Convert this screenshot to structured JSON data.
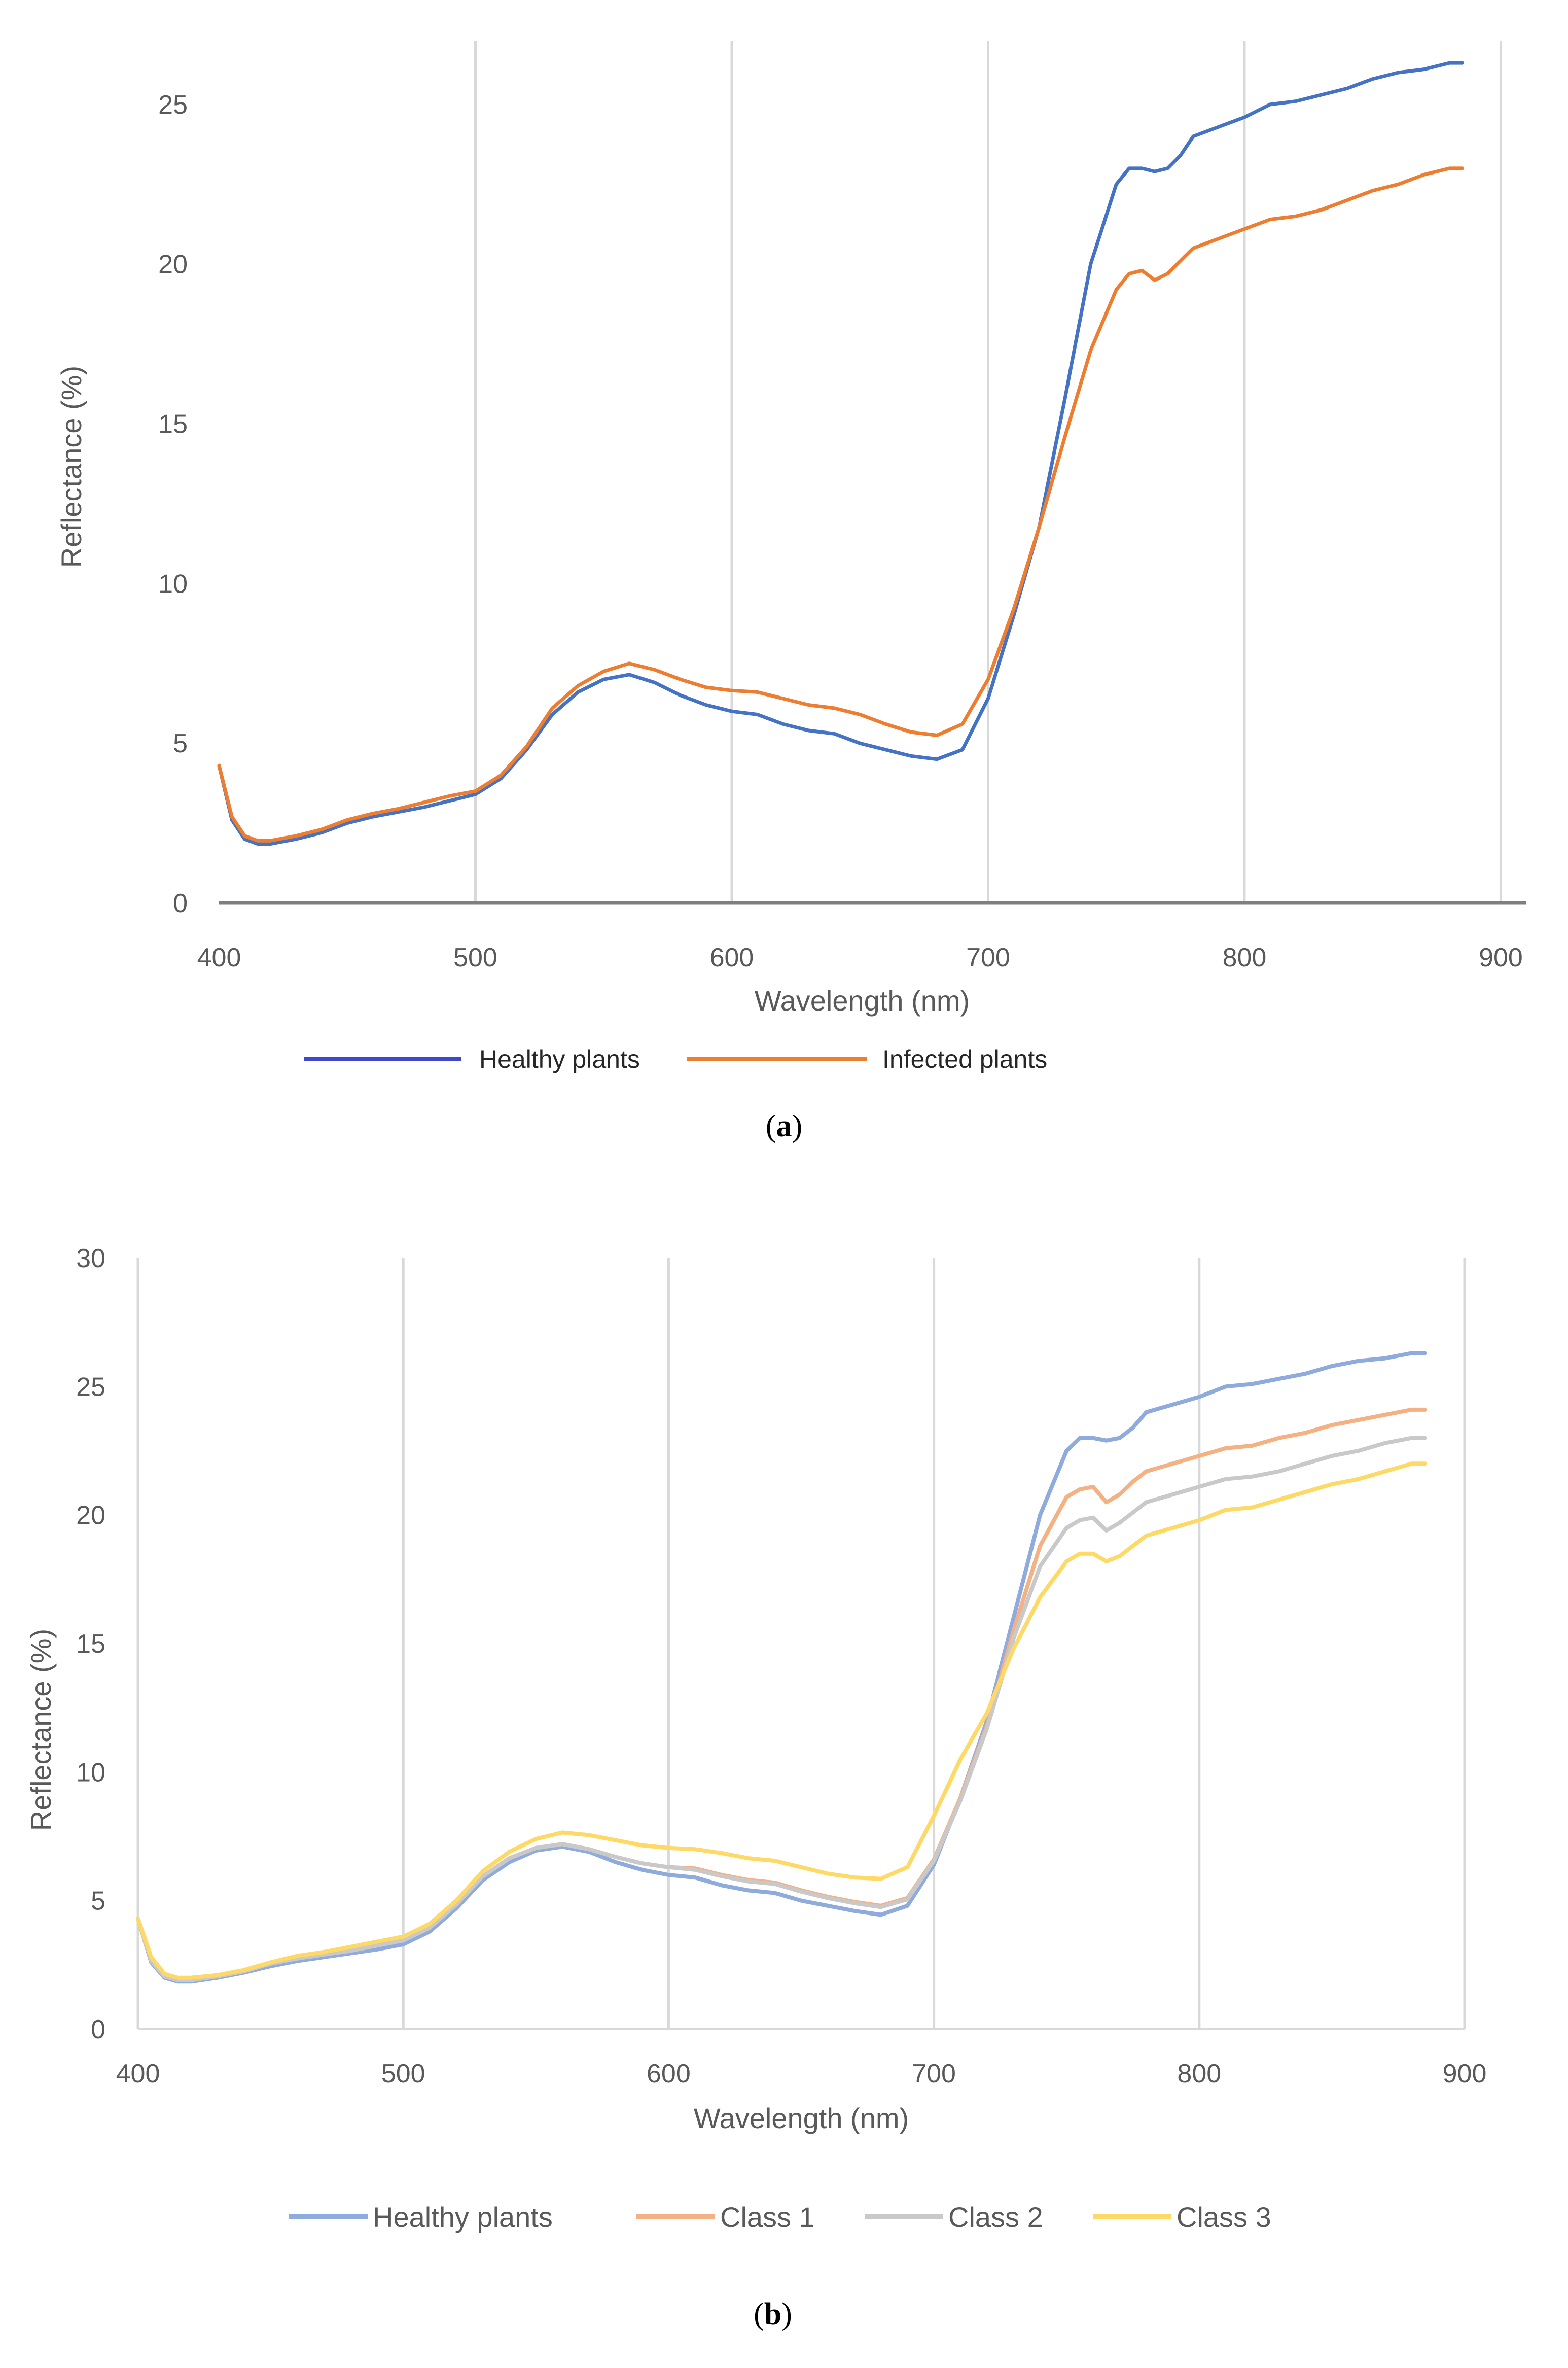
{
  "chart_data": [
    {
      "id": "a",
      "type": "line",
      "caption_open": "(",
      "caption_letter": "a",
      "caption_close": ")",
      "xlabel": "Wavelength (nm)",
      "ylabel": "Reflectance (%)",
      "xlim": [
        400,
        910
      ],
      "ylim": [
        0,
        27
      ],
      "xticks": [
        400,
        500,
        600,
        700,
        800,
        900
      ],
      "yticks": [
        0,
        5,
        10,
        15,
        20,
        25
      ],
      "grid": "vertical",
      "legend": "bottom",
      "x": [
        400,
        405,
        410,
        415,
        420,
        430,
        440,
        450,
        460,
        470,
        480,
        490,
        500,
        510,
        520,
        530,
        540,
        550,
        560,
        570,
        580,
        590,
        600,
        610,
        620,
        630,
        640,
        650,
        660,
        670,
        680,
        690,
        700,
        710,
        720,
        730,
        740,
        750,
        755,
        760,
        765,
        770,
        775,
        780,
        790,
        800,
        810,
        820,
        830,
        840,
        850,
        860,
        870,
        880,
        885
      ],
      "series": [
        {
          "name": "Healthy plants",
          "color": "#4472c4",
          "legend_color": "#3f48cc",
          "values": [
            4.3,
            2.6,
            2.0,
            1.85,
            1.85,
            2.0,
            2.2,
            2.5,
            2.7,
            2.85,
            3.0,
            3.2,
            3.4,
            3.9,
            4.8,
            5.9,
            6.6,
            7.0,
            7.15,
            6.9,
            6.5,
            6.2,
            6.0,
            5.9,
            5.6,
            5.4,
            5.3,
            5.0,
            4.8,
            4.6,
            4.5,
            4.8,
            6.4,
            9.0,
            11.8,
            15.8,
            20.0,
            22.5,
            23.0,
            23.0,
            22.9,
            23.0,
            23.4,
            24.0,
            24.3,
            24.6,
            25.0,
            25.1,
            25.3,
            25.5,
            25.8,
            26.0,
            26.1,
            26.3,
            26.3
          ]
        },
        {
          "name": "Infected plants",
          "color": "#ed7d31",
          "legend_color": "#ed7d31",
          "values": [
            4.3,
            2.7,
            2.1,
            1.95,
            1.95,
            2.1,
            2.3,
            2.6,
            2.8,
            2.95,
            3.15,
            3.35,
            3.5,
            4.0,
            4.9,
            6.1,
            6.8,
            7.25,
            7.5,
            7.3,
            7.0,
            6.75,
            6.65,
            6.6,
            6.4,
            6.2,
            6.1,
            5.9,
            5.6,
            5.35,
            5.25,
            5.6,
            7.0,
            9.2,
            11.8,
            14.6,
            17.3,
            19.2,
            19.7,
            19.8,
            19.5,
            19.7,
            20.1,
            20.5,
            20.8,
            21.1,
            21.4,
            21.5,
            21.7,
            22.0,
            22.3,
            22.5,
            22.8,
            23.0,
            23.0
          ]
        }
      ]
    },
    {
      "id": "b",
      "type": "line",
      "caption_open": "(",
      "caption_letter": "b",
      "caption_close": ")",
      "xlabel": "Wavelength (nm)",
      "ylabel": "Reflectance (%)",
      "xlim": [
        400,
        900
      ],
      "ylim": [
        0,
        30
      ],
      "xticks": [
        400,
        500,
        600,
        700,
        800,
        900
      ],
      "yticks": [
        0,
        5,
        10,
        15,
        20,
        25,
        30
      ],
      "grid": "vertical",
      "legend": "bottom",
      "x": [
        400,
        405,
        410,
        415,
        420,
        430,
        440,
        450,
        460,
        470,
        480,
        490,
        500,
        510,
        520,
        530,
        540,
        550,
        560,
        570,
        580,
        590,
        600,
        610,
        620,
        630,
        640,
        650,
        660,
        670,
        680,
        690,
        700,
        710,
        720,
        730,
        740,
        750,
        755,
        760,
        765,
        770,
        775,
        780,
        790,
        800,
        810,
        820,
        830,
        840,
        850,
        860,
        870,
        880,
        885
      ],
      "series": [
        {
          "name": "Healthy plants",
          "color": "#8faadc",
          "values": [
            4.3,
            2.6,
            2.0,
            1.85,
            1.85,
            2.0,
            2.2,
            2.45,
            2.65,
            2.8,
            2.95,
            3.1,
            3.3,
            3.8,
            4.7,
            5.8,
            6.5,
            6.95,
            7.1,
            6.9,
            6.5,
            6.2,
            6.0,
            5.9,
            5.6,
            5.4,
            5.3,
            5.0,
            4.8,
            4.6,
            4.45,
            4.8,
            6.4,
            9.0,
            12.0,
            16.0,
            20.0,
            22.5,
            23.0,
            23.0,
            22.9,
            23.0,
            23.4,
            24.0,
            24.3,
            24.6,
            25.0,
            25.1,
            25.3,
            25.5,
            25.8,
            26.0,
            26.1,
            26.3,
            26.3
          ]
        },
        {
          "name": "Class 1",
          "color": "#f4b183",
          "values": [
            4.3,
            2.7,
            2.1,
            1.95,
            1.95,
            2.05,
            2.25,
            2.55,
            2.75,
            2.9,
            3.05,
            3.25,
            3.45,
            3.95,
            4.85,
            5.95,
            6.65,
            7.05,
            7.2,
            7.0,
            6.7,
            6.45,
            6.3,
            6.25,
            6.0,
            5.8,
            5.7,
            5.4,
            5.15,
            4.95,
            4.8,
            5.1,
            6.6,
            9.0,
            11.8,
            15.5,
            18.8,
            20.7,
            21.0,
            21.1,
            20.5,
            20.8,
            21.3,
            21.7,
            22.0,
            22.3,
            22.6,
            22.7,
            23.0,
            23.2,
            23.5,
            23.7,
            23.9,
            24.1,
            24.1
          ]
        },
        {
          "name": "Class 2",
          "color": "#c9c9c9",
          "values": [
            4.3,
            2.65,
            2.05,
            1.9,
            1.9,
            2.05,
            2.25,
            2.55,
            2.75,
            2.9,
            3.05,
            3.25,
            3.45,
            3.95,
            4.85,
            5.95,
            6.65,
            7.05,
            7.2,
            7.0,
            6.7,
            6.45,
            6.3,
            6.2,
            5.95,
            5.75,
            5.65,
            5.35,
            5.1,
            4.9,
            4.75,
            5.05,
            6.55,
            8.9,
            11.7,
            15.2,
            18.0,
            19.5,
            19.8,
            19.9,
            19.4,
            19.7,
            20.1,
            20.5,
            20.8,
            21.1,
            21.4,
            21.5,
            21.7,
            22.0,
            22.3,
            22.5,
            22.8,
            23.0,
            23.0
          ]
        },
        {
          "name": "Class 3",
          "color": "#ffd966",
          "values": [
            4.3,
            2.8,
            2.15,
            2.0,
            2.0,
            2.1,
            2.3,
            2.6,
            2.85,
            3.0,
            3.2,
            3.4,
            3.6,
            4.1,
            5.0,
            6.15,
            6.9,
            7.4,
            7.65,
            7.55,
            7.35,
            7.15,
            7.05,
            7.0,
            6.85,
            6.65,
            6.55,
            6.3,
            6.05,
            5.9,
            5.85,
            6.3,
            8.3,
            10.5,
            12.3,
            14.8,
            16.8,
            18.2,
            18.5,
            18.5,
            18.2,
            18.4,
            18.8,
            19.2,
            19.5,
            19.8,
            20.2,
            20.3,
            20.6,
            20.9,
            21.2,
            21.4,
            21.7,
            22.0,
            22.0
          ]
        }
      ]
    }
  ]
}
